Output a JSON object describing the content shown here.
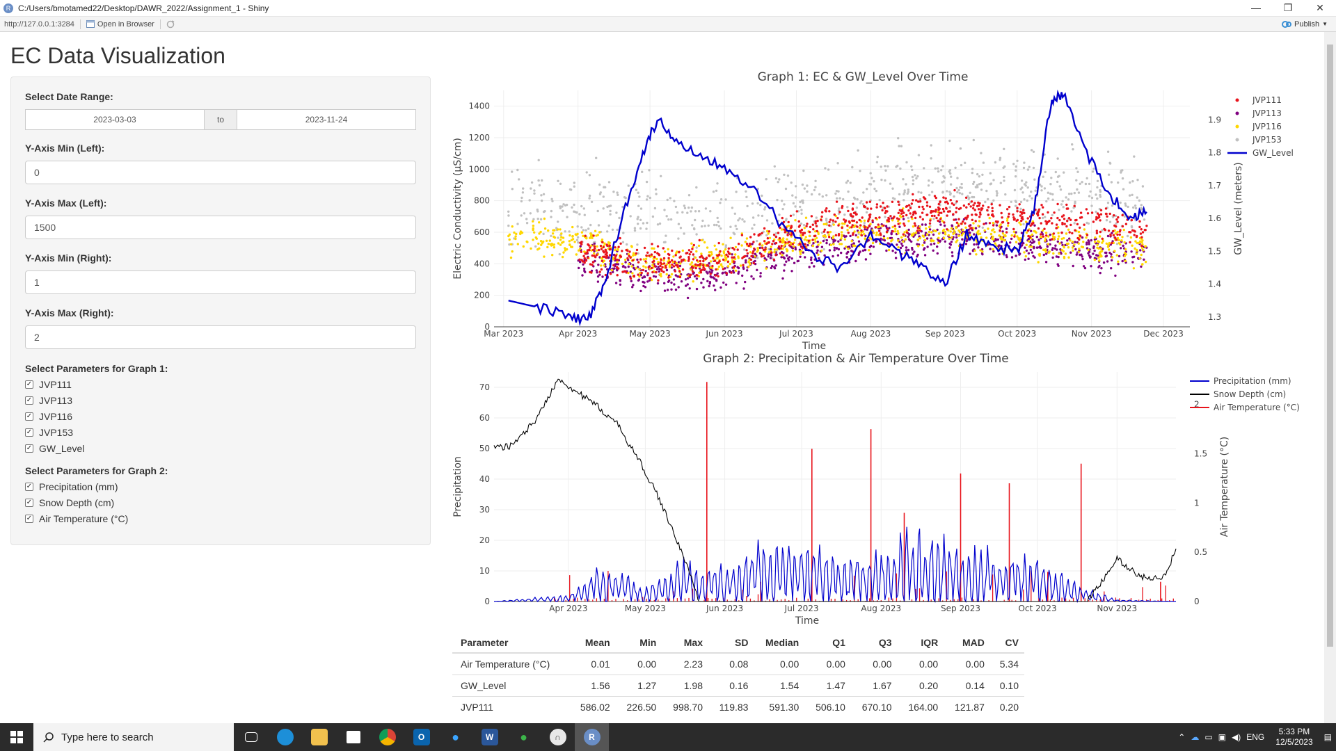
{
  "window": {
    "title": "C:/Users/bmotamed22/Desktop/DAWR_2022/Assignment_1 - Shiny",
    "minimize": "—",
    "maximize": "❐",
    "close": "✕"
  },
  "toolbar": {
    "url": "http://127.0.0.1:3284",
    "open_in_browser": "Open in Browser",
    "publish": "Publish"
  },
  "page_title": "EC Data Visualization",
  "sidebar": {
    "date_range_label": "Select Date Range:",
    "date_start": "2023-03-03",
    "date_to": "to",
    "date_end": "2023-11-24",
    "ymin_left_label": "Y-Axis Min (Left):",
    "ymin_left_value": "0",
    "ymax_left_label": "Y-Axis Max (Left):",
    "ymax_left_value": "1500",
    "ymin_right_label": "Y-Axis Min (Right):",
    "ymin_right_value": "1",
    "ymax_right_label": "Y-Axis Max (Right):",
    "ymax_right_value": "2",
    "graph1_params_label": "Select Parameters for Graph 1:",
    "graph1_params": [
      {
        "label": "JVP111",
        "checked": true
      },
      {
        "label": "JVP113",
        "checked": true
      },
      {
        "label": "JVP116",
        "checked": true
      },
      {
        "label": "JVP153",
        "checked": true
      },
      {
        "label": "GW_Level",
        "checked": true
      }
    ],
    "graph2_params_label": "Select Parameters for Graph 2:",
    "graph2_params": [
      {
        "label": "Precipitation (mm)",
        "checked": true
      },
      {
        "label": "Snow Depth (cm)",
        "checked": true
      },
      {
        "label": "Air Temperature (°C)",
        "checked": true
      }
    ]
  },
  "chart_data": [
    {
      "type": "scatter",
      "title": "Graph 1: EC & GW_Level Over Time",
      "xlabel": "Time",
      "ylabel": "Electric Conductivity (µS/cm)",
      "y2label": "GW_Level (meters)",
      "x_ticks": [
        "Mar 2023",
        "Apr 2023",
        "May 2023",
        "Jun 2023",
        "Jul 2023",
        "Aug 2023",
        "Sep 2023",
        "Oct 2023",
        "Nov 2023",
        "Dec 2023"
      ],
      "x_range": [
        "2023-02-25",
        "2023-12-12"
      ],
      "ylim": [
        0,
        1500
      ],
      "y_ticks": [
        0,
        200,
        400,
        600,
        800,
        1000,
        1200,
        1400
      ],
      "y2lim": [
        1.27,
        1.99
      ],
      "y2_ticks": [
        "1.3",
        "1.4",
        "1.5",
        "1.6",
        "1.7",
        "1.8",
        "1.9"
      ],
      "legend_position": "top-right",
      "series": [
        {
          "name": "JVP111",
          "color": "#e8141c",
          "mode": "markers",
          "axis": "left",
          "x": [
            "2023-04-01",
            "2023-05-01",
            "2023-06-01",
            "2023-07-01",
            "2023-08-01",
            "2023-09-01",
            "2023-10-01",
            "2023-11-01",
            "2023-11-24"
          ],
          "y": [
            480,
            390,
            430,
            620,
            700,
            740,
            690,
            650,
            620
          ]
        },
        {
          "name": "JVP113",
          "color": "#800080",
          "mode": "markers",
          "axis": "left",
          "x": [
            "2023-04-01",
            "2023-05-01",
            "2023-06-01",
            "2023-07-01",
            "2023-08-01",
            "2023-09-01",
            "2023-10-01",
            "2023-11-01",
            "2023-11-24"
          ],
          "y": [
            420,
            320,
            330,
            470,
            540,
            590,
            520,
            480,
            470
          ]
        },
        {
          "name": "JVP116",
          "color": "#ffd700",
          "mode": "markers",
          "axis": "left",
          "x": [
            "2023-03-03",
            "2023-04-01",
            "2023-05-01",
            "2023-06-01",
            "2023-07-01",
            "2023-08-01",
            "2023-09-01",
            "2023-10-01",
            "2023-11-01",
            "2023-11-24"
          ],
          "y": [
            560,
            550,
            380,
            430,
            560,
            600,
            610,
            560,
            520,
            520
          ]
        },
        {
          "name": "JVP153",
          "color": "#c0c0c0",
          "mode": "markers",
          "axis": "left",
          "x": [
            "2023-03-03",
            "2023-04-01",
            "2023-05-01",
            "2023-06-01",
            "2023-07-01",
            "2023-08-01",
            "2023-09-01",
            "2023-10-01",
            "2023-11-01",
            "2023-11-24"
          ],
          "y": [
            750,
            780,
            700,
            650,
            750,
            850,
            900,
            880,
            830,
            800
          ]
        },
        {
          "name": "GW_Level",
          "color": "#0000cd",
          "mode": "lines",
          "axis": "right",
          "x": [
            "2023-03-03",
            "2023-03-15",
            "2023-03-28",
            "2023-04-05",
            "2023-04-12",
            "2023-04-20",
            "2023-04-28",
            "2023-05-04",
            "2023-05-12",
            "2023-05-22",
            "2023-06-01",
            "2023-06-12",
            "2023-06-25",
            "2023-07-06",
            "2023-07-18",
            "2023-08-01",
            "2023-08-12",
            "2023-08-22",
            "2023-09-01",
            "2023-09-10",
            "2023-09-20",
            "2023-10-01",
            "2023-10-08",
            "2023-10-15",
            "2023-10-20",
            "2023-10-30",
            "2023-11-10",
            "2023-11-18",
            "2023-11-24"
          ],
          "y": [
            1.35,
            1.33,
            1.3,
            1.29,
            1.4,
            1.62,
            1.8,
            1.9,
            1.84,
            1.79,
            1.76,
            1.7,
            1.58,
            1.5,
            1.45,
            1.55,
            1.5,
            1.45,
            1.4,
            1.55,
            1.52,
            1.5,
            1.62,
            1.95,
            1.98,
            1.8,
            1.66,
            1.6,
            1.62
          ]
        }
      ]
    },
    {
      "type": "line",
      "title": "Graph 2: Precipitation & Air Temperature Over Time",
      "xlabel": "Time",
      "ylabel": "Precipitation",
      "y2label": "Air Temperature (°C)",
      "x_ticks": [
        "Apr 2023",
        "May 2023",
        "Jun 2023",
        "Jul 2023",
        "Aug 2023",
        "Sep 2023",
        "Oct 2023",
        "Nov 2023"
      ],
      "x_range": [
        "2023-03-03",
        "2023-11-24"
      ],
      "ylim": [
        0,
        75
      ],
      "y_ticks": [
        0,
        10,
        20,
        30,
        40,
        50,
        60,
        70
      ],
      "y2lim": [
        0,
        2.33
      ],
      "y2_ticks": [
        "0",
        "0.5",
        "1",
        "1.5",
        "2"
      ],
      "legend_position": "top-right",
      "series": [
        {
          "name": "Precipitation (mm)",
          "color": "#0000cd",
          "axis": "left",
          "x": [
            "2023-03-03",
            "2023-04-01",
            "2023-04-10",
            "2023-04-20",
            "2023-05-01",
            "2023-05-15",
            "2023-06-01",
            "2023-06-15",
            "2023-07-01",
            "2023-07-15",
            "2023-08-01",
            "2023-08-15",
            "2023-09-01",
            "2023-09-15",
            "2023-10-01",
            "2023-10-10",
            "2023-10-20",
            "2023-11-01",
            "2023-11-24"
          ],
          "y": [
            0,
            2,
            9,
            10,
            4,
            12,
            10,
            18,
            17,
            14,
            14,
            22,
            16,
            15,
            13,
            8,
            4,
            0.5,
            0
          ]
        },
        {
          "name": "Snow Depth (cm)",
          "color": "#000000",
          "axis": "left",
          "x": [
            "2023-03-03",
            "2023-03-10",
            "2023-03-20",
            "2023-03-28",
            "2023-04-05",
            "2023-04-12",
            "2023-04-20",
            "2023-04-28",
            "2023-05-05",
            "2023-05-12",
            "2023-05-18",
            "2023-05-22",
            "2023-10-20",
            "2023-10-25",
            "2023-11-01",
            "2023-11-10",
            "2023-11-20",
            "2023-11-24"
          ],
          "y": [
            50,
            51,
            60,
            73,
            68,
            64,
            58,
            47,
            36,
            23,
            10,
            0,
            0,
            5,
            14,
            8,
            8,
            18
          ]
        },
        {
          "name": "Air Temperature (°C)",
          "color": "#e8141c",
          "axis": "right",
          "x": [
            "2023-05-25",
            "2023-06-15",
            "2023-07-05",
            "2023-07-28",
            "2023-08-10",
            "2023-09-01",
            "2023-09-20",
            "2023-10-05",
            "2023-10-18",
            "2023-11-18"
          ],
          "y": [
            2.23,
            0.2,
            1.55,
            1.75,
            0.9,
            1.3,
            1.2,
            0.3,
            1.4,
            0.2
          ]
        }
      ]
    }
  ],
  "stats_table": {
    "headers": [
      "Parameter",
      "Mean",
      "Min",
      "Max",
      "SD",
      "Median",
      "Q1",
      "Q3",
      "IQR",
      "MAD",
      "CV"
    ],
    "rows": [
      [
        "Air Temperature (°C)",
        "0.01",
        "0.00",
        "2.23",
        "0.08",
        "0.00",
        "0.00",
        "0.00",
        "0.00",
        "0.00",
        "5.34"
      ],
      [
        "GW_Level",
        "1.56",
        "1.27",
        "1.98",
        "0.16",
        "1.54",
        "1.47",
        "1.67",
        "0.20",
        "0.14",
        "0.10"
      ],
      [
        "JVP111",
        "586.02",
        "226.50",
        "998.70",
        "119.83",
        "591.30",
        "506.10",
        "670.10",
        "164.00",
        "121.87",
        "0.20"
      ]
    ]
  },
  "taskbar": {
    "search_placeholder": "Type here to search",
    "lang": "ENG",
    "time": "5:33 PM",
    "date": "12/5/2023"
  }
}
